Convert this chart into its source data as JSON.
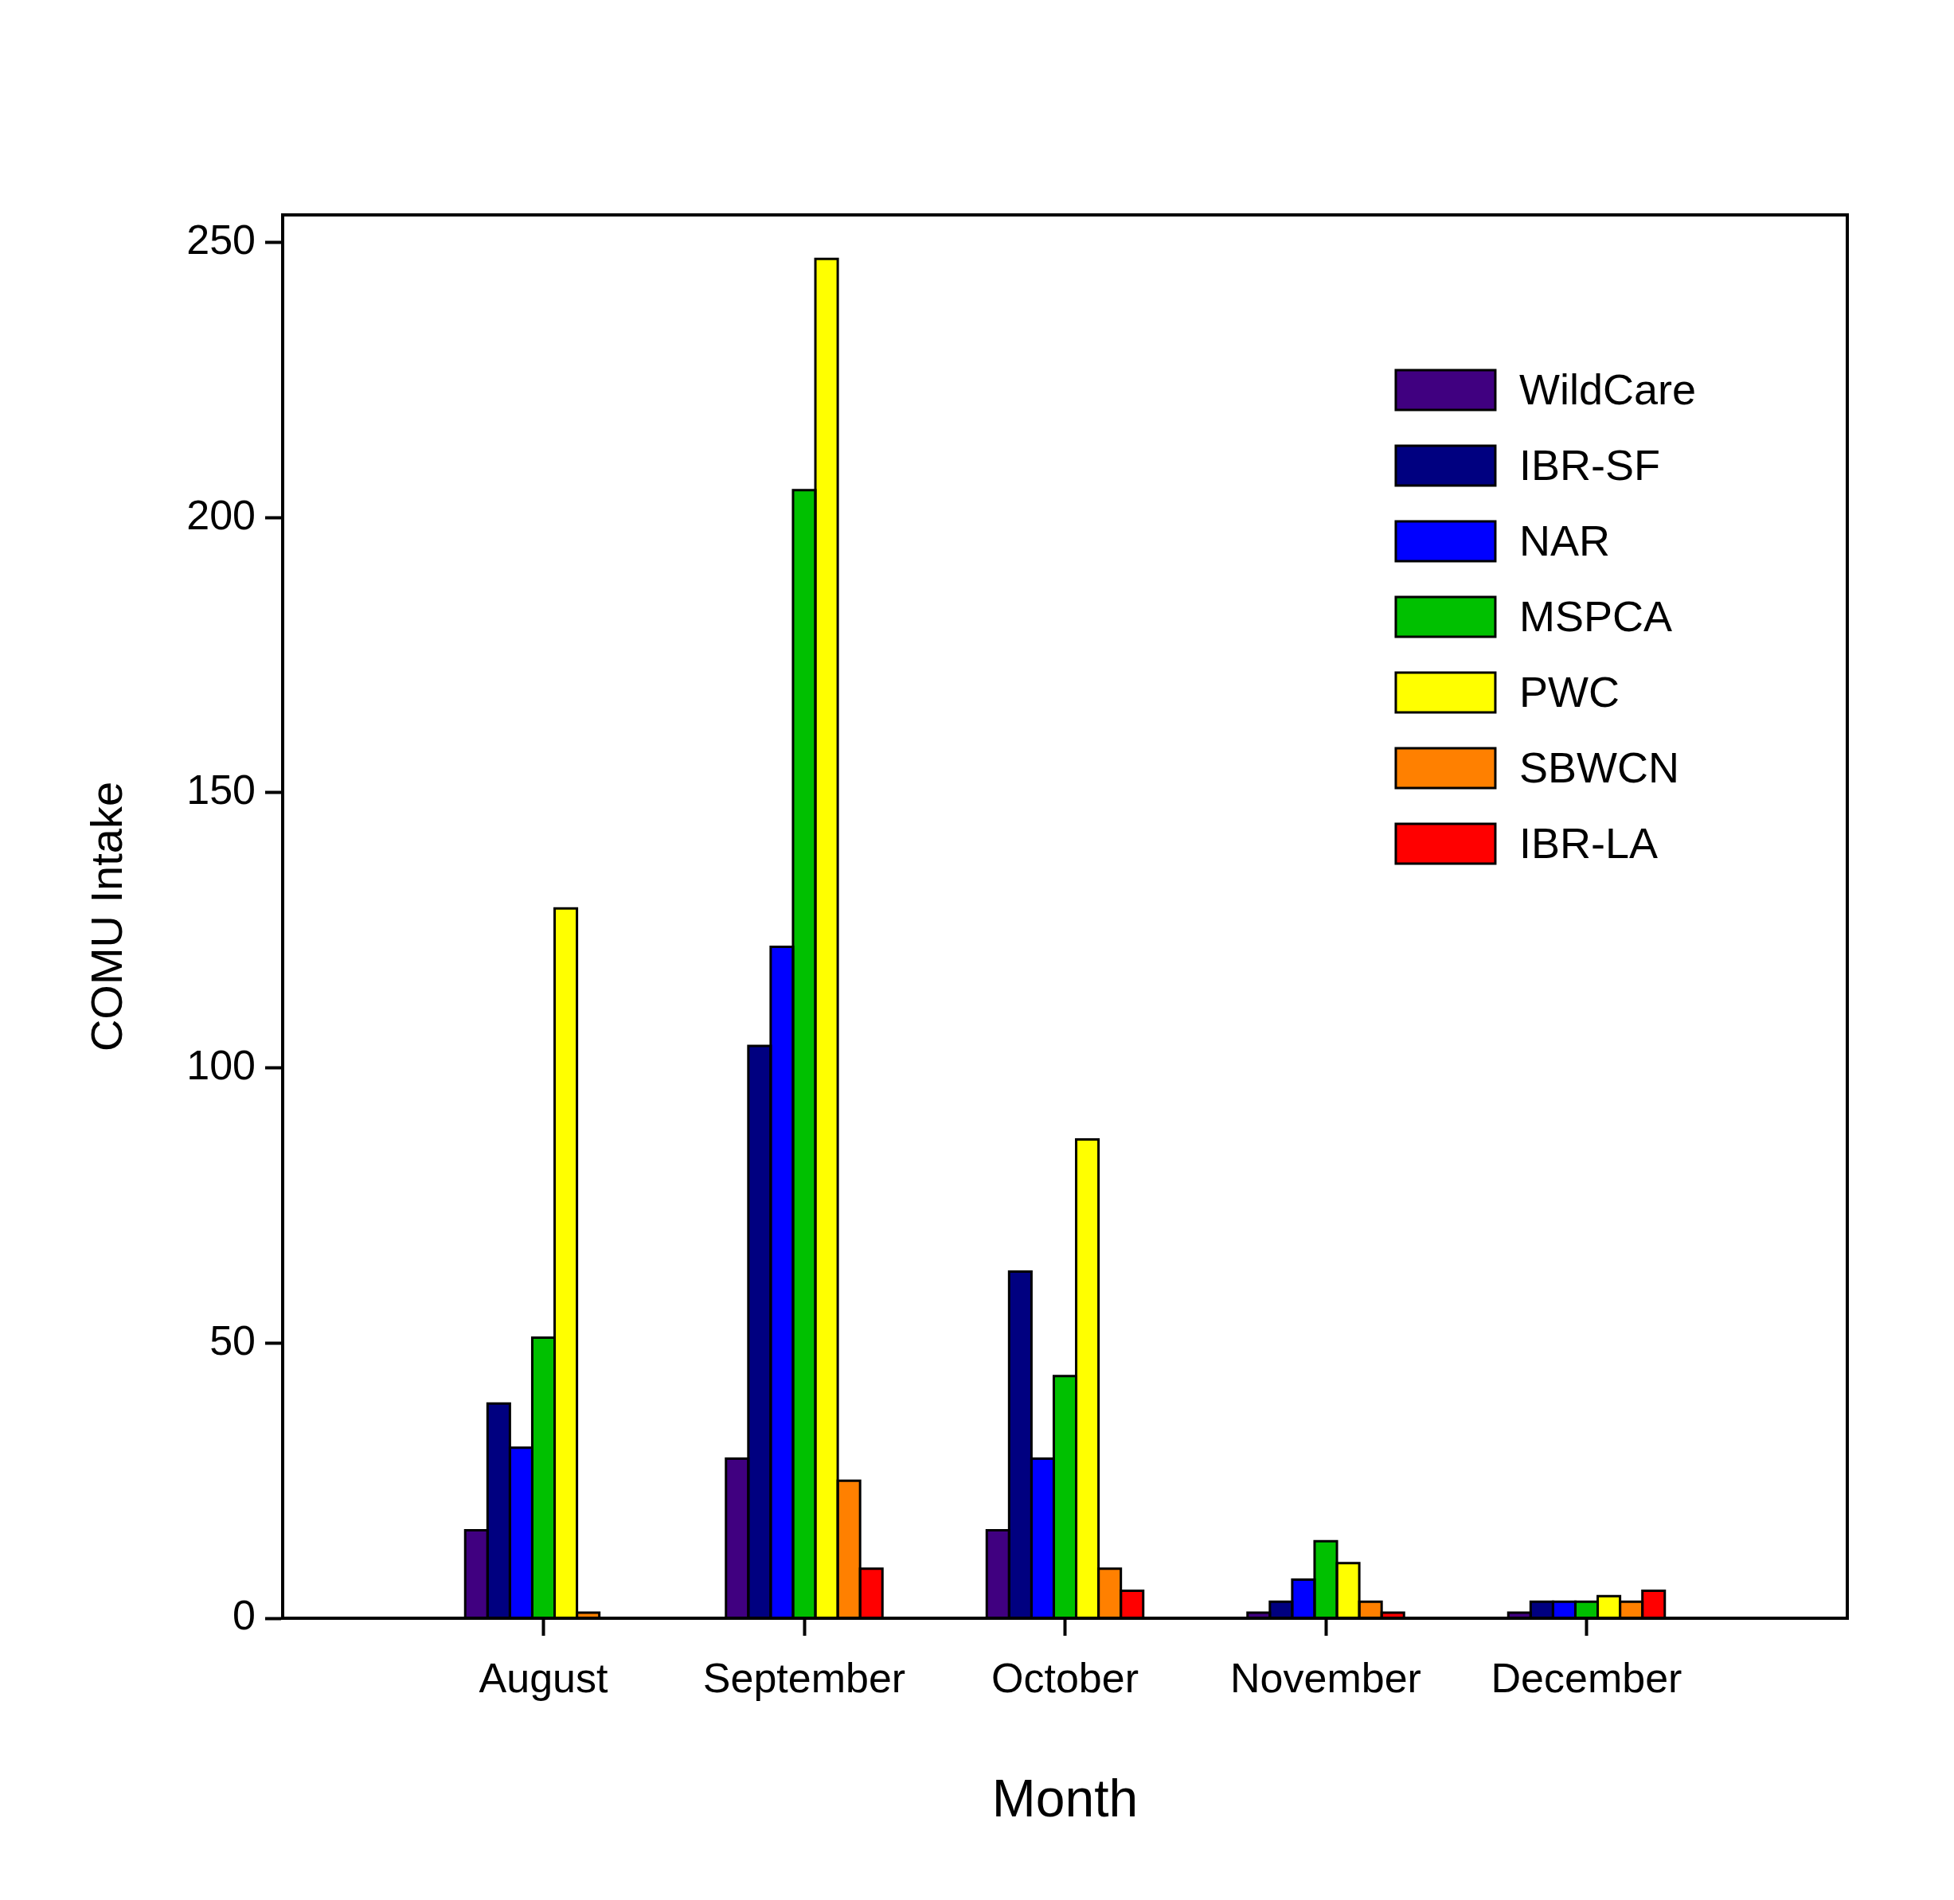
{
  "chart_data": {
    "type": "bar",
    "xlabel": "Month",
    "ylabel": "COMU Intake",
    "categories": [
      "August",
      "September",
      "October",
      "November",
      "December"
    ],
    "series": [
      {
        "name": "WildCare",
        "color": "#400080",
        "values": [
          16,
          29,
          16,
          1,
          1
        ]
      },
      {
        "name": "IBR-SF",
        "color": "#000080",
        "values": [
          39,
          104,
          63,
          3,
          3
        ]
      },
      {
        "name": "NAR",
        "color": "#0000ff",
        "values": [
          31,
          122,
          29,
          7,
          3
        ]
      },
      {
        "name": "MSPCA",
        "color": "#00c000",
        "values": [
          51,
          205,
          44,
          14,
          3
        ]
      },
      {
        "name": "PWC",
        "color": "#ffff00",
        "values": [
          129,
          247,
          87,
          10,
          4
        ]
      },
      {
        "name": "SBWCN",
        "color": "#ff8000",
        "values": [
          1,
          25,
          9,
          3,
          3
        ]
      },
      {
        "name": "IBR-LA",
        "color": "#ff0000",
        "values": [
          null,
          9,
          5,
          1,
          5
        ]
      }
    ],
    "ylim": [
      0,
      255
    ],
    "yticks": [
      0,
      50,
      100,
      150,
      200,
      250
    ],
    "grid": false,
    "legend": "top right"
  }
}
